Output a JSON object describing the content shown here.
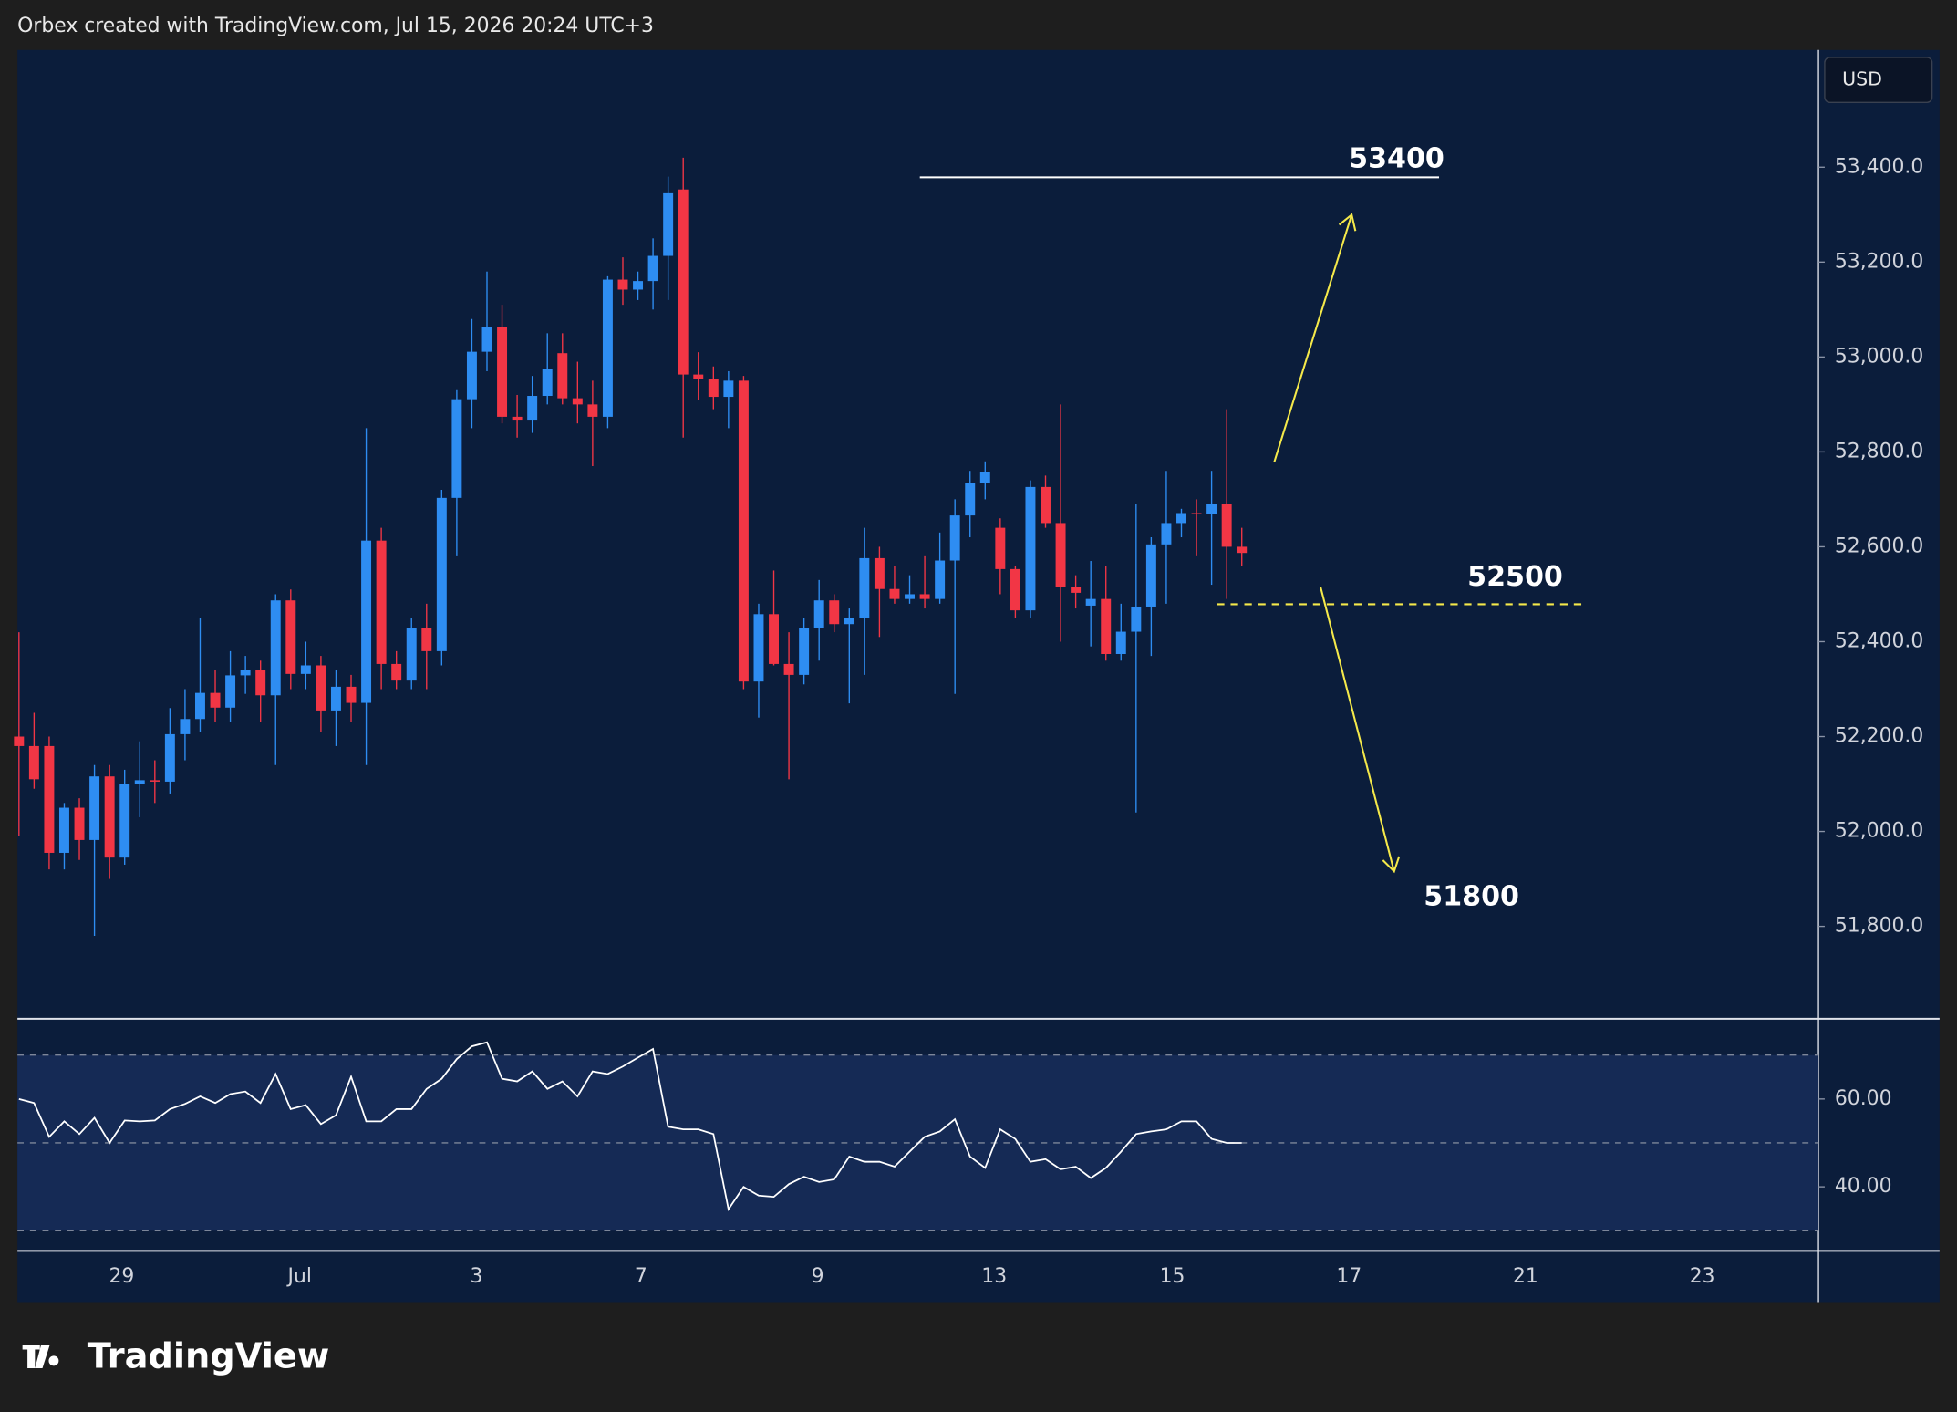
{
  "header": {
    "text": "Orbex created with TradingView.com, Jul 15, 2026 20:24 UTC+3"
  },
  "footer": {
    "logo": "TradingView"
  },
  "chart_data": [
    {
      "type": "candlestick",
      "currency": "USD",
      "up_color": "#2e8df2",
      "down_color": "#f23645",
      "xlim": [
        -0.1,
        119.2
      ],
      "xticks": [
        {
          "value": 6.8,
          "label": "29"
        },
        {
          "value": 18.6,
          "label": "Jul"
        },
        {
          "value": 30.3,
          "label": "3"
        },
        {
          "value": 41.2,
          "label": "7"
        },
        {
          "value": 52.9,
          "label": "9"
        },
        {
          "value": 64.6,
          "label": "13"
        },
        {
          "value": 76.4,
          "label": "15"
        },
        {
          "value": 88.1,
          "label": "17"
        },
        {
          "value": 99.8,
          "label": "21"
        },
        {
          "value": 111.5,
          "label": "23"
        }
      ],
      "ylim": [
        51608,
        53647
      ],
      "yticks": [
        {
          "value": 51800,
          "label": "51,800.0"
        },
        {
          "value": 52000,
          "label": "52,000.0"
        },
        {
          "value": 52200,
          "label": "52,200.0"
        },
        {
          "value": 52400,
          "label": "52,400.0"
        },
        {
          "value": 52600,
          "label": "52,600.0"
        },
        {
          "value": 52800,
          "label": "52,800.0"
        },
        {
          "value": 53000,
          "label": "53,000.0"
        },
        {
          "value": 53200,
          "label": "53,200.0"
        },
        {
          "value": 53400,
          "label": "53,400.0"
        }
      ],
      "open": [
        52200,
        52180,
        52180,
        51955,
        52050,
        51982,
        52116,
        51945,
        52100,
        52108,
        52105,
        52205,
        52237,
        52292,
        52261,
        52329,
        52340,
        52287,
        52487,
        52332,
        52350,
        52255,
        52305,
        52271,
        52613,
        52353,
        52318,
        52429,
        52380,
        52703,
        52911,
        53011,
        53063,
        52874,
        52866,
        52918,
        53008,
        52913,
        52900,
        52874,
        53163,
        53142,
        53160,
        53213,
        53353,
        52963,
        52953,
        52916,
        52950,
        52316,
        52458,
        52353,
        52330,
        52429,
        52487,
        52437,
        52450,
        52576,
        52511,
        52490,
        52500,
        52490,
        52571,
        52666,
        52734,
        52640,
        52553,
        52466,
        52726,
        52650,
        52516,
        52476,
        52490,
        52374,
        52421,
        52474,
        52605,
        52650,
        52671,
        52670,
        52690,
        52600
      ],
      "high": [
        52420,
        52250,
        52200,
        52060,
        52070,
        52140,
        52140,
        52130,
        52190,
        52150,
        52260,
        52300,
        52450,
        52340,
        52380,
        52370,
        52360,
        52500,
        52510,
        52400,
        52370,
        52340,
        52330,
        52850,
        52640,
        52380,
        52450,
        52480,
        52720,
        52930,
        53080,
        53180,
        53110,
        52920,
        52960,
        53050,
        53050,
        52990,
        52950,
        53170,
        53210,
        53180,
        53250,
        53380,
        53420,
        53010,
        52980,
        52970,
        52960,
        52480,
        52550,
        52420,
        52450,
        52530,
        52500,
        52470,
        52640,
        52600,
        52560,
        52540,
        52580,
        52630,
        52700,
        52760,
        52780,
        52660,
        52560,
        52740,
        52750,
        52900,
        52540,
        52570,
        52560,
        52480,
        52690,
        52620,
        52760,
        52680,
        52700,
        52760,
        52890,
        52640
      ],
      "low": [
        51990,
        52090,
        51920,
        51920,
        51940,
        51780,
        51900,
        51930,
        52030,
        52060,
        52080,
        52150,
        52210,
        52230,
        52230,
        52290,
        52230,
        52140,
        52300,
        52300,
        52210,
        52180,
        52230,
        52140,
        52300,
        52300,
        52300,
        52300,
        52350,
        52580,
        52850,
        52970,
        52860,
        52830,
        52840,
        52900,
        52900,
        52860,
        52770,
        52850,
        53110,
        53120,
        53100,
        53120,
        52830,
        52910,
        52890,
        52850,
        52300,
        52240,
        52350,
        52110,
        52310,
        52360,
        52420,
        52270,
        52330,
        52410,
        52480,
        52480,
        52470,
        52480,
        52290,
        52620,
        52700,
        52500,
        52450,
        52450,
        52640,
        52400,
        52470,
        52390,
        52360,
        52360,
        52040,
        52370,
        52480,
        52620,
        52580,
        52520,
        52490,
        52560
      ],
      "close": [
        52180,
        52110,
        51955,
        52050,
        51982,
        52116,
        51945,
        52100,
        52108,
        52105,
        52205,
        52237,
        52292,
        52261,
        52329,
        52340,
        52287,
        52487,
        52332,
        52350,
        52255,
        52305,
        52271,
        52613,
        52353,
        52318,
        52429,
        52380,
        52703,
        52911,
        53011,
        53063,
        52874,
        52866,
        52918,
        52974,
        52913,
        52900,
        52874,
        53163,
        53142,
        53160,
        53213,
        53345,
        52963,
        52953,
        52916,
        52950,
        52316,
        52458,
        52353,
        52330,
        52429,
        52487,
        52437,
        52450,
        52576,
        52511,
        52490,
        52500,
        52490,
        52571,
        52666,
        52734,
        52758,
        52553,
        52466,
        52726,
        52650,
        52516,
        52503,
        52490,
        52374,
        52421,
        52474,
        52605,
        52650,
        52671,
        52670,
        52690,
        52600,
        52587
      ],
      "annotations": [
        {
          "text": "53400"
        },
        {
          "text": "52500"
        },
        {
          "text": "51800"
        }
      ]
    },
    {
      "type": "line",
      "color": "#ffffff",
      "levels": [
        30,
        50,
        70
      ],
      "ylim": [
        25.4,
        78
      ],
      "yticks": [
        {
          "value": 40,
          "label": "40.00"
        },
        {
          "value": 60,
          "label": "60.00"
        }
      ],
      "values": [
        60,
        59.1,
        51.4,
        54.9,
        52,
        55.7,
        50,
        55.1,
        54.9,
        55.1,
        57.7,
        58.9,
        60.6,
        59.1,
        61.1,
        61.7,
        59.1,
        65.7,
        57.7,
        58.6,
        54.3,
        56.3,
        65.1,
        54.9,
        54.9,
        57.7,
        57.7,
        62.3,
        64.6,
        69.1,
        72,
        72.9,
        64.6,
        64,
        66.3,
        62.3,
        64,
        60.6,
        66.3,
        65.7,
        67.4,
        69.4,
        71.4,
        53.7,
        53.1,
        53.1,
        52,
        34.9,
        40,
        38,
        37.7,
        40.6,
        42.3,
        41.1,
        41.7,
        46.9,
        45.7,
        45.7,
        44.6,
        48,
        51.4,
        52.6,
        55.4,
        46.9,
        44.3,
        53.1,
        50.9,
        45.7,
        46.3,
        44,
        44.6,
        42,
        44.3,
        48,
        52,
        52.6,
        53.1,
        54.9,
        54.9,
        50.9,
        50,
        50
      ]
    }
  ]
}
